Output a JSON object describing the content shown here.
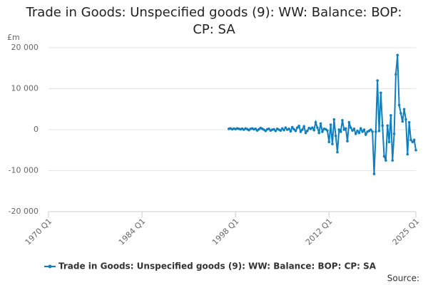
{
  "chart_data": {
    "type": "line",
    "title": "Trade in Goods: Unspecified goods (9): WW: Balance: BOP: CP: SA",
    "y_label": "£m",
    "source": "Source:",
    "x": [
      1997,
      1997.25,
      1997.5,
      1997.75,
      1998,
      1998.25,
      1998.5,
      1998.75,
      1999,
      1999.25,
      1999.5,
      1999.75,
      2000,
      2000.25,
      2000.5,
      2000.75,
      2001,
      2001.25,
      2001.5,
      2001.75,
      2002,
      2002.25,
      2002.5,
      2002.75,
      2003,
      2003.25,
      2003.5,
      2003.75,
      2004,
      2004.25,
      2004.5,
      2004.75,
      2005,
      2005.25,
      2005.5,
      2005.75,
      2006,
      2006.25,
      2006.5,
      2006.75,
      2007,
      2007.25,
      2007.5,
      2007.75,
      2008,
      2008.25,
      2008.5,
      2008.75,
      2009,
      2009.25,
      2009.5,
      2009.75,
      2010,
      2010.25,
      2010.5,
      2010.75,
      2011,
      2011.25,
      2011.5,
      2011.75,
      2012,
      2012.25,
      2012.5,
      2012.75,
      2013,
      2013.25,
      2013.5,
      2013.75,
      2014,
      2014.25,
      2014.5,
      2014.75,
      2015,
      2015.25,
      2015.5,
      2015.75,
      2016,
      2016.25,
      2016.5,
      2016.75,
      2017,
      2017.25,
      2017.5,
      2017.75,
      2018,
      2018.25,
      2018.5,
      2018.75,
      2019,
      2019.25,
      2019.5,
      2019.75,
      2020,
      2020.25,
      2020.5,
      2020.75,
      2021,
      2021.25,
      2021.5,
      2021.75,
      2022,
      2022.25,
      2022.5,
      2022.75,
      2023,
      2023.25,
      2023.5,
      2023.75,
      2024,
      2024.25,
      2024.5,
      2024.75,
      2025
    ],
    "series": [
      {
        "name": "Trade in Goods: Unspecified goods (9): WW: Balance: BOP: CP: SA",
        "color": "#0f7fc0",
        "values": [
          200,
          300,
          100,
          250,
          150,
          300,
          200,
          100,
          250,
          0,
          300,
          150,
          -100,
          200,
          300,
          100,
          200,
          -200,
          100,
          400,
          200,
          0,
          -300,
          100,
          200,
          -200,
          0,
          100,
          -300,
          200,
          0,
          -200,
          300,
          -100,
          500,
          0,
          200,
          -400,
          600,
          100,
          -300,
          500,
          900,
          -500,
          0,
          800,
          -800,
          -300,
          400,
          200,
          500,
          -100,
          1800,
          500,
          -800,
          1500,
          -500,
          200,
          100,
          -200,
          -3000,
          1200,
          -3500,
          2500,
          -1500,
          -5500,
          0,
          -500,
          2300,
          0,
          300,
          -2800,
          1800,
          500,
          -200,
          200,
          -1000,
          -300,
          -800,
          300,
          -500,
          0,
          -1200,
          -500,
          -300,
          0,
          -500,
          -10800,
          -500,
          12000,
          -300,
          9000,
          1000,
          -6500,
          -7500,
          1000,
          -3000,
          3500,
          -7500,
          -1000,
          13500,
          18200,
          6000,
          4000,
          2000,
          5000,
          2500,
          -6000,
          1800,
          -2500,
          -3000,
          -2500,
          -5000
        ]
      }
    ],
    "xlim": [
      1970,
      2025
    ],
    "xticks": [
      {
        "value": 1970,
        "label": "1970 Q1"
      },
      {
        "value": 1984,
        "label": "1984 Q1"
      },
      {
        "value": 1998,
        "label": "1998 Q1"
      },
      {
        "value": 2012,
        "label": "2012 Q1"
      },
      {
        "value": 2025,
        "label": "2025 Q1"
      }
    ],
    "ylim": [
      -20000,
      20000
    ],
    "yticks": [
      {
        "value": -20000,
        "label": "-20 000"
      },
      {
        "value": -10000,
        "label": "-10 000"
      },
      0,
      {
        "value": 10000,
        "label": "10 000"
      },
      {
        "value": 20000,
        "label": "20 000"
      }
    ],
    "grid": true,
    "legend": "bottom"
  }
}
